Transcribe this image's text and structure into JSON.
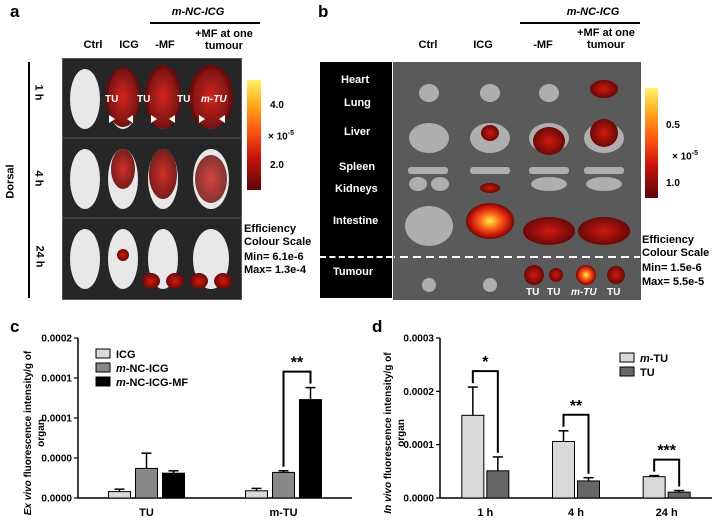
{
  "panel_a": {
    "label": "a",
    "group_title": "m-NC-ICG",
    "columns": [
      "Ctrl",
      "ICG",
      "-MF",
      "+MF at one tumour"
    ],
    "rows": [
      "1 h",
      "4 h",
      "24 h"
    ],
    "side_label": "Dorsal",
    "tumour_markers": [
      "TU",
      "TU",
      "TU",
      "m-TU"
    ],
    "colorbar_ticks": [
      "4.0",
      "2.0"
    ],
    "colorbar_unit": "× 10",
    "colorbar_exp": "-5",
    "scale_title": "Efficiency Colour Scale",
    "scale_min": "Min= 6.1e-6",
    "scale_max": "Max= 1.3e-4"
  },
  "panel_b": {
    "label": "b",
    "group_title": "m-NC-ICG",
    "columns": [
      "Ctrl",
      "ICG",
      "-MF",
      "+MF at one tumour"
    ],
    "organs": [
      "Heart",
      "Lung",
      "Liver",
      "Spleen",
      "Kidneys",
      "Intestine",
      "Tumour"
    ],
    "tumour_markers": [
      "TU",
      "TU",
      "m-TU",
      "TU"
    ],
    "colorbar_ticks": [
      "0.5",
      "1.0"
    ],
    "colorbar_unit": "× 10",
    "colorbar_exp": "-5",
    "scale_title": "Efficiency Colour Scale",
    "scale_min": "Min= 1.5e-6",
    "scale_max": "Max= 5.5e-5"
  },
  "chart_data": [
    {
      "panel": "c",
      "type": "bar",
      "title": "",
      "ylabel_italic": "Ex vivo",
      "ylabel_rest": " fluorescence intensity/g of organ",
      "xlabel": "",
      "categories": [
        "TU",
        "m-TU"
      ],
      "ylim": [
        0,
        0.0002
      ],
      "yticks": [
        "0.0000",
        "0.0000",
        "0.0001",
        "0.0001",
        "0.0002"
      ],
      "series": [
        {
          "name": "ICG",
          "color": "#d9d9d9",
          "values": [
            8e-06,
            9e-06
          ],
          "errors": [
            3e-06,
            3e-06
          ]
        },
        {
          "name": "m-NC-ICG",
          "color": "#888888",
          "values": [
            3.7e-05,
            3.2e-05
          ],
          "errors": [
            1.9e-05,
            2e-06
          ]
        },
        {
          "name": "m-NC-ICG-MF",
          "color": "#000000",
          "values": [
            3.1e-05,
            0.000123
          ],
          "errors": [
            3e-06,
            1.5e-05
          ]
        }
      ],
      "significance": [
        {
          "category": "m-TU",
          "label": "**"
        }
      ]
    },
    {
      "panel": "d",
      "type": "bar",
      "title": "",
      "ylabel_italic": "In vivo",
      "ylabel_rest": " fluorescence intensity/g of organ",
      "xlabel": "",
      "categories": [
        "1 h",
        "4 h",
        "24 h"
      ],
      "ylim": [
        0,
        0.0003
      ],
      "yticks": [
        "0.0000",
        "0.0001",
        "0.0002",
        "0.0003"
      ],
      "series": [
        {
          "name": "m-TU",
          "color": "#d9d9d9",
          "values": [
            0.000155,
            0.000106,
            4e-05
          ],
          "errors": [
            5.3e-05,
            2e-05,
            2e-06
          ]
        },
        {
          "name": "TU",
          "color": "#666666",
          "values": [
            5.1e-05,
            3.2e-05,
            1.1e-05
          ],
          "errors": [
            2.6e-05,
            6e-06,
            3e-06
          ]
        }
      ],
      "significance": [
        {
          "category": "1 h",
          "label": "*"
        },
        {
          "category": "4 h",
          "label": "**"
        },
        {
          "category": "24 h",
          "label": "***"
        }
      ]
    }
  ]
}
